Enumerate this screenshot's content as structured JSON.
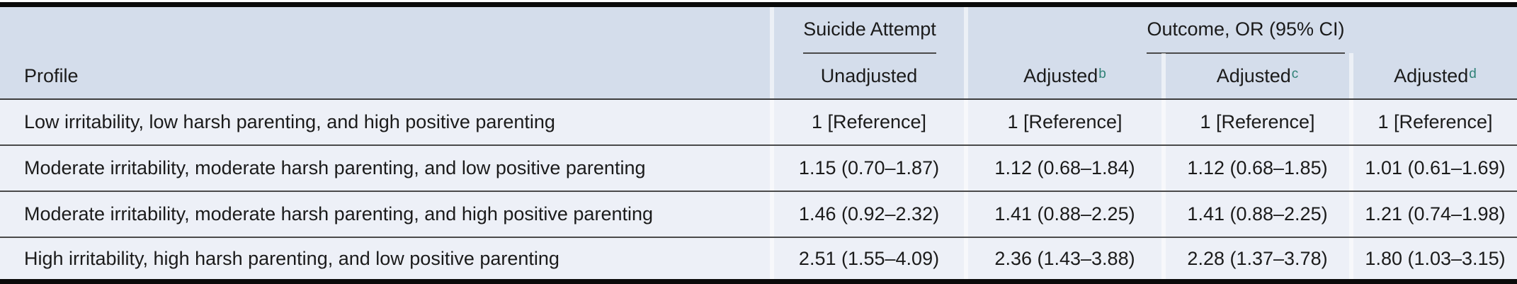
{
  "table": {
    "columns": {
      "profile": "Profile",
      "group_suicide_attempt": "Suicide Attempt",
      "group_outcome": "Outcome, OR (95% CI)",
      "unadjusted": "Unadjusted",
      "adjusted": [
        {
          "label": "Adjusted",
          "sup": "b"
        },
        {
          "label": "Adjusted",
          "sup": "c"
        },
        {
          "label": "Adjusted",
          "sup": "d"
        }
      ]
    },
    "rows": [
      {
        "profile": "Low irritability, low harsh parenting, and high positive parenting",
        "unadjusted": "1 [Reference]",
        "adjusted_b": "1 [Reference]",
        "adjusted_c": "1 [Reference]",
        "adjusted_d": "1 [Reference]"
      },
      {
        "profile": "Moderate irritability, moderate harsh parenting, and low positive parenting",
        "unadjusted": "1.15 (0.70–1.87)",
        "adjusted_b": "1.12 (0.68–1.84)",
        "adjusted_c": "1.12 (0.68–1.85)",
        "adjusted_d": "1.01 (0.61–1.69)"
      },
      {
        "profile": "Moderate irritability, moderate harsh parenting, and high positive parenting",
        "unadjusted": "1.46 (0.92–2.32)",
        "adjusted_b": "1.41 (0.88–2.25)",
        "adjusted_c": "1.41 (0.88–2.25)",
        "adjusted_d": "1.21 (0.74–1.98)"
      },
      {
        "profile": "High irritability, high harsh parenting, and low positive parenting",
        "unadjusted": "2.51 (1.55–4.09)",
        "adjusted_b": "2.36 (1.43–3.88)",
        "adjusted_c": "2.28 (1.37–3.78)",
        "adjusted_d": "1.80 (1.03–3.15)"
      }
    ],
    "colors": {
      "header_background": "#d4ddeb",
      "body_background": "#edf0f7",
      "footnote_superscript": "#2f8176",
      "heavy_rule": "#0a0a0a",
      "thin_rule": "#4a4a4a"
    }
  }
}
